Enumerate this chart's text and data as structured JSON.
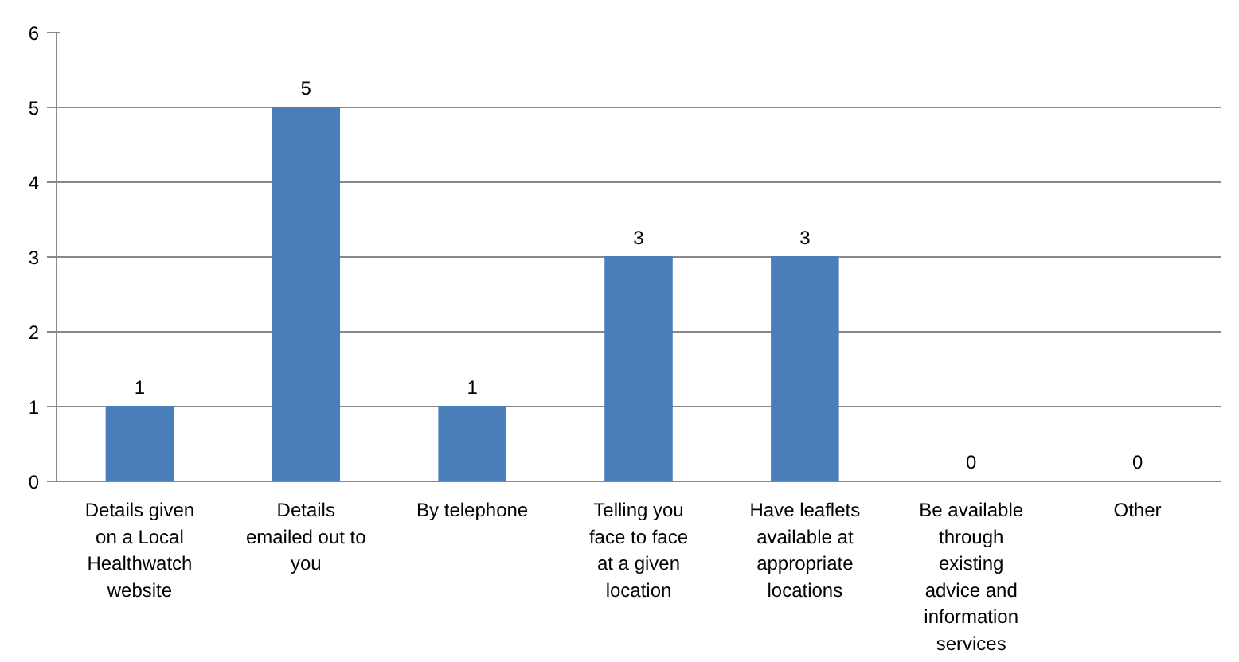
{
  "chart_data": {
    "type": "bar",
    "categories": [
      "Details given on a Local Healthwatch website",
      "Details emailed out to you",
      "By telephone",
      "Telling you face to face at a given location",
      "Have leaflets available at appropriate locations",
      "Be available through existing advice and information services",
      "Other"
    ],
    "values": [
      1,
      5,
      1,
      3,
      3,
      0,
      0
    ],
    "color": "#4a7ebb",
    "ylim": [
      0,
      6
    ],
    "yticks": [
      0,
      1,
      2,
      3,
      4,
      5,
      6
    ],
    "grid": "y",
    "data_labels": true
  }
}
